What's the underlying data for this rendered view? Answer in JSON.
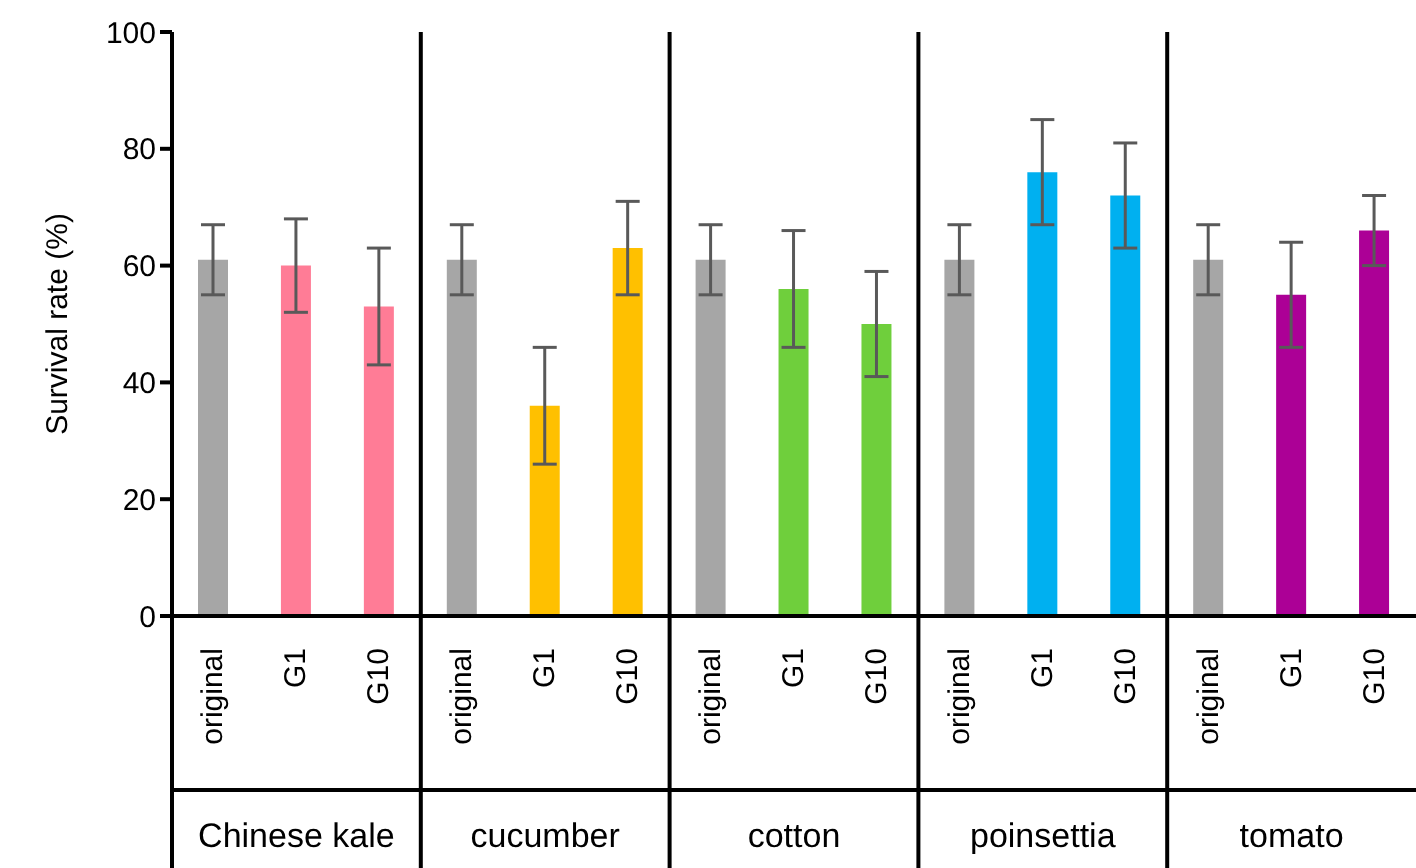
{
  "chart_data": {
    "type": "bar",
    "ylabel": "Survival rate (%)",
    "categories": [
      "original",
      "G1",
      "G10",
      "original",
      "G1",
      "G10",
      "original",
      "G1",
      "G10",
      "original",
      "G1",
      "G10",
      "original",
      "G1",
      "G10"
    ],
    "values": [
      61,
      60,
      53,
      61,
      36,
      63,
      61,
      56,
      50,
      61,
      76,
      72,
      61,
      55,
      66
    ],
    "errors": [
      6,
      8,
      10,
      6,
      10,
      8,
      6,
      10,
      9,
      6,
      9,
      9,
      6,
      9,
      6
    ],
    "colors": [
      "#a6a6a6",
      "#ff7c96",
      "#ff7c96",
      "#a6a6a6",
      "#ffc000",
      "#ffc000",
      "#a6a6a6",
      "#6fcf3c",
      "#6fcf3c",
      "#a6a6a6",
      "#00b0f0",
      "#00b0f0",
      "#a6a6a6",
      "#ac0096",
      "#ac0096"
    ],
    "annotations": [
      "Chinese kale",
      "cucumber",
      "cotton",
      "poinsettia",
      "tomato"
    ],
    "ylim": [
      0,
      100
    ],
    "yticks": [
      0,
      20,
      40,
      60,
      80,
      100
    ],
    "grid": false,
    "legend": false
  }
}
